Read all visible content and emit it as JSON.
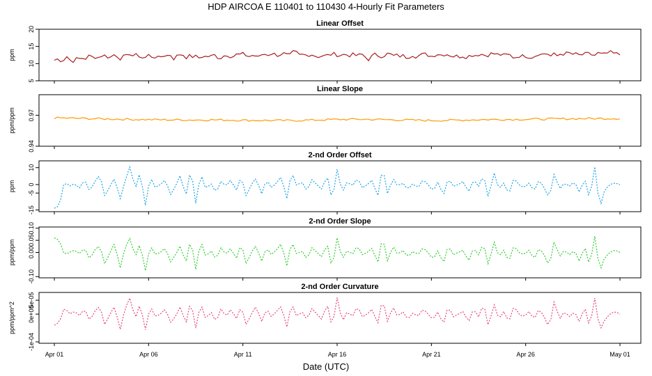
{
  "chart_data": {
    "type": "line",
    "title": "HDP   AIRCOA E   110401 to 110430   4-Hourly Fit Parameters",
    "xlabel": "Date (UTC)",
    "x_range_days": [
      1.0,
      31.0
    ],
    "x_ticks": [
      {
        "day": 1,
        "label": "Apr 01"
      },
      {
        "day": 6,
        "label": "Apr 06"
      },
      {
        "day": 11,
        "label": "Apr 11"
      },
      {
        "day": 16,
        "label": "Apr 16"
      },
      {
        "day": 21,
        "label": "Apr 21"
      },
      {
        "day": 26,
        "label": "Apr 26"
      },
      {
        "day": 31,
        "label": "May 01"
      }
    ],
    "interval_hours": 4,
    "panels": [
      {
        "title": "Linear Offset",
        "ylabel": "ppm",
        "ylim": [
          5,
          20
        ],
        "yticks": [
          {
            "v": 5,
            "label": "5"
          },
          {
            "v": 10,
            "label": "10"
          },
          {
            "v": 15,
            "label": "15"
          },
          {
            "v": 20,
            "label": "20"
          }
        ],
        "color": "#b22222",
        "dash": "none",
        "values": [
          11.0,
          11.3,
          11.0,
          11.2,
          12.1,
          11.0,
          10.8,
          11.3,
          11.4,
          11.6,
          11.5,
          12.2,
          11.9,
          12.0,
          11.8,
          12.4,
          12.3,
          12.0,
          11.9,
          12.7,
          12.2,
          11.5,
          12.0,
          12.1,
          13.1,
          12.2,
          12.4,
          12.3,
          11.6,
          11.8,
          12.6,
          12.0,
          12.0,
          11.5,
          12.2,
          12.5,
          12.3,
          12.6,
          11.2,
          12.4,
          12.8,
          12.5,
          11.7,
          12.3,
          12.0,
          12.0,
          11.6,
          12.3,
          11.9,
          12.2,
          12.1,
          12.6,
          11.6,
          11.8,
          12.5,
          12.7,
          12.0,
          12.2,
          12.8,
          12.5,
          12.8,
          12.3,
          12.0,
          12.6,
          12.1,
          11.6,
          13.2,
          12.5,
          12.7,
          13.1,
          12.5,
          12.5,
          12.9,
          12.8,
          12.2,
          12.4,
          13.9,
          12.6,
          12.3,
          12.8,
          12.2,
          13.0,
          12.4,
          12.2,
          12.0,
          12.4,
          12.1,
          12.6,
          12.8,
          12.7,
          12.5,
          12.4,
          12.8,
          12.4,
          12.5,
          12.6,
          12.1,
          12.7,
          12.5,
          11.1,
          11.5,
          12.6,
          12.6,
          12.2,
          12.3,
          12.6,
          13.1,
          12.0,
          12.5,
          12.1,
          12.4,
          12.0,
          11.7,
          12.9,
          12.1,
          12.2,
          12.5,
          12.7,
          12.7,
          12.1,
          12.3,
          13.0,
          12.5,
          12.7,
          12.8,
          12.6,
          12.1,
          12.2,
          12.0,
          12.4,
          12.0,
          12.1,
          12.6,
          12.4,
          12.7,
          12.8,
          12.5,
          12.5,
          12.8,
          12.9,
          12.6,
          12.7,
          12.3,
          12.5,
          12.6,
          11.9,
          11.8,
          12.4,
          12.1,
          12.3,
          12.1,
          11.9,
          12.2,
          13.0,
          12.6,
          12.9,
          13.0,
          12.1,
          12.7,
          12.2,
          12.8,
          12.9,
          12.9,
          13.0,
          12.7,
          12.7,
          12.4,
          12.6,
          12.7,
          12.8,
          12.6,
          12.4,
          13.0,
          12.7,
          12.6,
          13.0,
          13.2,
          12.9,
          12.8,
          12.6
        ],
        "noise_amplitude": 1.2
      },
      {
        "title": "Linear Slope",
        "ylabel": "ppm/ppm",
        "ylim": [
          0.94,
          0.99
        ],
        "yticks": [
          {
            "v": 0.94,
            "label": "0.94"
          },
          {
            "v": 0.97,
            "label": "0.97"
          }
        ],
        "color": "#ff9900",
        "dash": "none",
        "values": [
          0.9675,
          0.967,
          0.9666,
          0.9662,
          0.9658,
          0.9656,
          0.9655,
          0.9656,
          0.9652,
          0.965,
          0.9649,
          0.9654,
          0.966,
          0.9662,
          0.9658,
          0.9654,
          0.965,
          0.9652,
          0.9658,
          0.966,
          0.9662,
          0.9664,
          0.9667,
          0.9669,
          0.967
        ],
        "noise_amplitude": 0.002
      },
      {
        "title": "2-nd Order Offset",
        "ylabel": "ppm",
        "ylim": [
          -16,
          14
        ],
        "yticks": [
          {
            "v": -15,
            "label": "-15"
          },
          {
            "v": -5,
            "label": "-5"
          },
          {
            "v": 0,
            "label": "0"
          },
          {
            "v": 10,
            "label": "10"
          }
        ],
        "color": "#1ca3e6",
        "dash": "2,2",
        "values": [
          -14.0,
          -12.5,
          2.0,
          -1.0,
          0.5,
          -2.0,
          3.0,
          -4.0,
          1.5,
          6.0,
          -7.0,
          -1.0,
          4.0,
          -9.0,
          2.0,
          11.0,
          -3.0,
          8.0,
          -13.0,
          5.0,
          -2.0,
          0.0,
          3.0,
          -6.0,
          -1.0,
          6.0,
          -8.0,
          10.0,
          -11.0,
          7.0,
          -3.0,
          1.0,
          -5.0,
          2.0,
          -1.0,
          3.0,
          -4.0,
          5.0,
          -7.0,
          0.0,
          4.0,
          -6.0,
          3.0,
          -2.0,
          1.0,
          5.0,
          -9.0,
          8.0,
          -1.0,
          2.0,
          -4.0,
          3.0,
          0.0,
          -3.0,
          6.0,
          -10.0,
          9.0,
          -5.0,
          2.0,
          -1.0,
          4.0,
          -2.0,
          0.0,
          3.0,
          -8.0,
          11.0,
          -6.0,
          4.0,
          -1.0,
          1.0,
          -3.0,
          0.5,
          -2.0,
          3.0,
          0.0,
          -4.0,
          2.0,
          -7.0,
          4.0,
          -1.0,
          0.0,
          2.0,
          -5.0,
          3.0,
          -1.0,
          6.0,
          -9.0,
          8.0,
          -3.0,
          1.0,
          -6.0,
          4.0,
          0.0,
          -2.0,
          1.0,
          -4.0,
          3.0,
          -2.0,
          -8.0,
          7.0,
          -3.0,
          1.0,
          -1.0,
          2.0,
          -5.0,
          4.0,
          -9.0,
          11.0,
          -14.0,
          -3.0,
          0.0,
          1.0,
          0.0
        ],
        "noise_amplitude": 0
      },
      {
        "title": "2-nd Order Slope",
        "ylabel": "ppm/ppm",
        "ylim": [
          -0.105,
          0.105
        ],
        "yticks": [
          {
            "v": -0.1,
            "label": "-0.10"
          },
          {
            "v": 0.0,
            "label": "0.00"
          },
          {
            "v": 0.05,
            "label": "0.05"
          },
          {
            "v": 0.1,
            "label": "0.10"
          }
        ],
        "color": "#2ecc2e",
        "dash": "2,2",
        "values": [
          0.06,
          0.05,
          -0.01,
          0.0,
          0.01,
          -0.005,
          0.02,
          -0.03,
          0.01,
          0.03,
          -0.05,
          0.0,
          0.04,
          -0.07,
          0.02,
          0.06,
          -0.02,
          0.04,
          -0.08,
          0.03,
          -0.01,
          0.0,
          0.02,
          -0.04,
          -0.01,
          0.03,
          -0.05,
          0.06,
          -0.07,
          0.05,
          -0.02,
          0.01,
          -0.03,
          0.02,
          -0.01,
          0.02,
          -0.03,
          0.04,
          -0.05,
          0.0,
          0.03,
          -0.04,
          0.02,
          -0.01,
          0.01,
          0.04,
          -0.06,
          0.05,
          -0.01,
          0.01,
          -0.03,
          0.02,
          0.0,
          -0.02,
          0.04,
          -0.07,
          0.06,
          -0.03,
          0.01,
          -0.01,
          0.03,
          -0.01,
          0.0,
          0.02,
          -0.05,
          0.07,
          -0.04,
          0.03,
          -0.01,
          0.01,
          -0.02,
          0.005,
          -0.01,
          0.02,
          0.0,
          -0.03,
          0.01,
          -0.05,
          0.03,
          -0.01,
          0.0,
          0.01,
          -0.04,
          0.02,
          -0.01,
          0.04,
          -0.06,
          0.05,
          -0.02,
          0.01,
          -0.04,
          0.03,
          0.0,
          -0.01,
          0.01,
          -0.03,
          0.02,
          -0.01,
          -0.06,
          0.05,
          -0.02,
          0.01,
          -0.01,
          0.01,
          -0.04,
          0.03,
          -0.06,
          0.07,
          -0.08,
          -0.02,
          0.0,
          0.01,
          0.0
        ],
        "noise_amplitude": 0
      },
      {
        "title": "2-nd Order Curvature",
        "ylabel": "ppm/ppm^2",
        "ylim": [
          -0.000105,
          7.8e-05
        ],
        "yticks": [
          {
            "v": -0.0001,
            "label": "-1e-04"
          },
          {
            "v": 0.0,
            "label": "0e+00"
          },
          {
            "v": 5e-05,
            "label": "5e-05"
          }
        ],
        "color": "#e8457a",
        "dash": "2,2",
        "values": [
          -4e-05,
          -3e-05,
          2.5e-05,
          0.0,
          1e-05,
          -5e-06,
          2e-05,
          -2.5e-05,
          1e-05,
          3e-05,
          -4e-05,
          0.0,
          3e-05,
          -6e-05,
          2e-05,
          6e-05,
          -2e-05,
          4e-05,
          -6e-05,
          3e-05,
          -1e-05,
          0.0,
          2e-05,
          -3e-05,
          -1e-05,
          3e-05,
          -4e-05,
          5e-05,
          -5e-05,
          4e-05,
          -2e-05,
          1e-05,
          -3e-05,
          2e-05,
          -1e-05,
          2e-05,
          -2e-05,
          3e-05,
          -4e-05,
          0.0,
          3e-05,
          -3e-05,
          2e-05,
          -1e-05,
          1e-05,
          3e-05,
          -5e-05,
          4e-05,
          -1e-05,
          1e-05,
          -2e-05,
          2e-05,
          0.0,
          -2e-05,
          4e-05,
          -5e-05,
          6e-05,
          -3e-05,
          1e-05,
          -1e-05,
          3e-05,
          -1e-05,
          0.0,
          2e-05,
          -4e-05,
          6e-05,
          -3e-05,
          3e-05,
          -1e-05,
          1e-05,
          -2e-05,
          5e-06,
          -1e-05,
          2e-05,
          0.0,
          -2e-05,
          1e-05,
          -4e-05,
          3e-05,
          -1e-05,
          0.0,
          1e-05,
          -3e-05,
          2e-05,
          -1e-05,
          4e-05,
          -5e-05,
          4e-05,
          -2e-05,
          1e-05,
          -3e-05,
          3e-05,
          0.0,
          -1e-05,
          1e-05,
          -2e-05,
          2e-05,
          -1e-05,
          -5e-05,
          5e-05,
          -2e-05,
          1e-05,
          -1e-05,
          1e-05,
          -3e-05,
          3e-05,
          -5e-05,
          6e-05,
          -6e-05,
          -2e-05,
          0.0,
          1e-05,
          0.0
        ],
        "noise_amplitude": 0
      }
    ]
  }
}
